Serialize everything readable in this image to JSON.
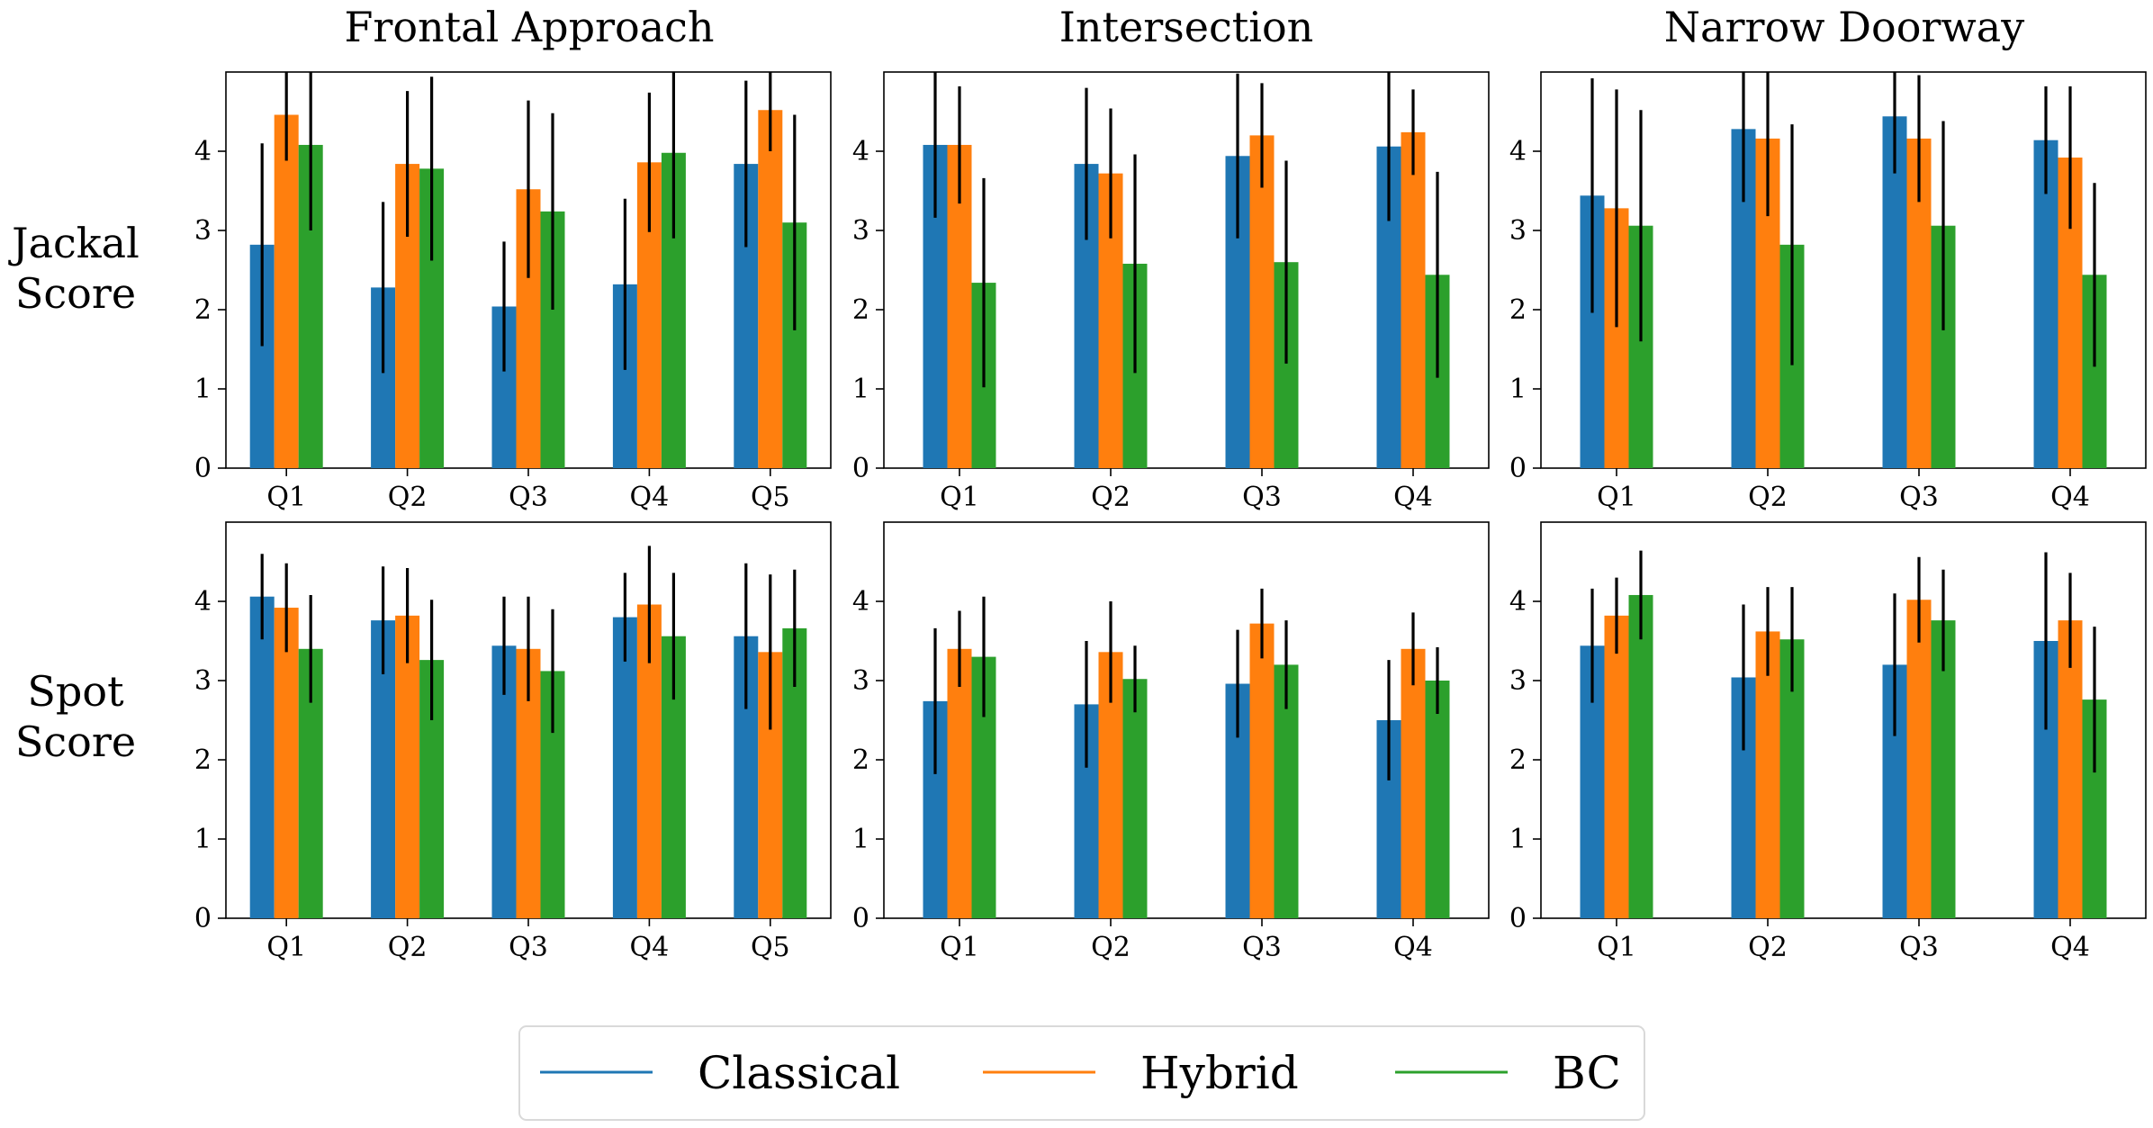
{
  "chart_data": {
    "type": "bar",
    "column_titles": [
      "Frontal Approach",
      "Intersection",
      "Narrow Doorway"
    ],
    "row_labels": [
      {
        "line1": "Jackal",
        "line2": "Score"
      },
      {
        "line1": "Spot",
        "line2": "Score"
      }
    ],
    "ylim": [
      0,
      5
    ],
    "yticks": [
      "0",
      "1",
      "2",
      "3",
      "4"
    ],
    "legend": {
      "placement": "bottom-center",
      "entries": [
        {
          "name": "Classical",
          "color": "#1f77b4"
        },
        {
          "name": "Hybrid",
          "color": "#ff7f0e"
        },
        {
          "name": "BC",
          "color": "#2ca02c"
        }
      ]
    },
    "panels": [
      {
        "row": "Jackal Score",
        "column": "Frontal Approach",
        "categories": [
          "Q1",
          "Q2",
          "Q3",
          "Q4",
          "Q5"
        ],
        "series": [
          {
            "name": "Classical",
            "values": [
              2.82,
              2.28,
              2.04,
              2.32,
              3.84
            ],
            "errors": [
              1.28,
              1.08,
              0.82,
              1.08,
              1.05
            ]
          },
          {
            "name": "Hybrid",
            "values": [
              4.46,
              3.84,
              3.52,
              3.86,
              4.52
            ],
            "errors": [
              0.58,
              0.92,
              1.12,
              0.88,
              0.52
            ]
          },
          {
            "name": "BC",
            "values": [
              4.08,
              3.78,
              3.24,
              3.98,
              3.1
            ],
            "errors": [
              1.08,
              1.16,
              1.24,
              1.08,
              1.36
            ]
          }
        ]
      },
      {
        "row": "Jackal Score",
        "column": "Intersection",
        "categories": [
          "Q1",
          "Q2",
          "Q3",
          "Q4"
        ],
        "series": [
          {
            "name": "Classical",
            "values": [
              4.08,
              3.84,
              3.94,
              4.06
            ],
            "errors": [
              0.92,
              0.96,
              1.04,
              0.94
            ]
          },
          {
            "name": "Hybrid",
            "values": [
              4.08,
              3.72,
              4.2,
              4.24
            ],
            "errors": [
              0.74,
              0.82,
              0.66,
              0.54
            ]
          },
          {
            "name": "BC",
            "values": [
              2.34,
              2.58,
              2.6,
              2.44
            ],
            "errors": [
              1.32,
              1.38,
              1.28,
              1.3
            ]
          }
        ]
      },
      {
        "row": "Jackal Score",
        "column": "Narrow Doorway",
        "categories": [
          "Q1",
          "Q2",
          "Q3",
          "Q4"
        ],
        "series": [
          {
            "name": "Classical",
            "values": [
              3.44,
              4.28,
              4.44,
              4.14
            ],
            "errors": [
              1.48,
              0.92,
              0.72,
              0.68
            ]
          },
          {
            "name": "Hybrid",
            "values": [
              3.28,
              4.16,
              4.16,
              3.92
            ],
            "errors": [
              1.5,
              0.98,
              0.8,
              0.9
            ]
          },
          {
            "name": "BC",
            "values": [
              3.06,
              2.82,
              3.06,
              2.44
            ],
            "errors": [
              1.46,
              1.52,
              1.32,
              1.16
            ]
          }
        ]
      },
      {
        "row": "Spot Score",
        "column": "Frontal Approach",
        "categories": [
          "Q1",
          "Q2",
          "Q3",
          "Q4",
          "Q5"
        ],
        "series": [
          {
            "name": "Classical",
            "values": [
              4.06,
              3.76,
              3.44,
              3.8,
              3.56
            ],
            "errors": [
              0.54,
              0.68,
              0.62,
              0.56,
              0.92
            ]
          },
          {
            "name": "Hybrid",
            "values": [
              3.92,
              3.82,
              3.4,
              3.96,
              3.36
            ],
            "errors": [
              0.56,
              0.6,
              0.66,
              0.74,
              0.98
            ]
          },
          {
            "name": "BC",
            "values": [
              3.4,
              3.26,
              3.12,
              3.56,
              3.66
            ],
            "errors": [
              0.68,
              0.76,
              0.78,
              0.8,
              0.74
            ]
          }
        ]
      },
      {
        "row": "Spot Score",
        "column": "Intersection",
        "categories": [
          "Q1",
          "Q2",
          "Q3",
          "Q4"
        ],
        "series": [
          {
            "name": "Classical",
            "values": [
              2.74,
              2.7,
              2.96,
              2.5
            ],
            "errors": [
              0.92,
              0.8,
              0.68,
              0.76
            ]
          },
          {
            "name": "Hybrid",
            "values": [
              3.4,
              3.36,
              3.72,
              3.4
            ],
            "errors": [
              0.48,
              0.64,
              0.44,
              0.46
            ]
          },
          {
            "name": "BC",
            "values": [
              3.3,
              3.02,
              3.2,
              3.0
            ],
            "errors": [
              0.76,
              0.42,
              0.56,
              0.42
            ]
          }
        ]
      },
      {
        "row": "Spot Score",
        "column": "Narrow Doorway",
        "categories": [
          "Q1",
          "Q2",
          "Q3",
          "Q4"
        ],
        "series": [
          {
            "name": "Classical",
            "values": [
              3.44,
              3.04,
              3.2,
              3.5
            ],
            "errors": [
              0.72,
              0.92,
              0.9,
              1.12
            ]
          },
          {
            "name": "Hybrid",
            "values": [
              3.82,
              3.62,
              4.02,
              3.76
            ],
            "errors": [
              0.48,
              0.56,
              0.54,
              0.6
            ]
          },
          {
            "name": "BC",
            "values": [
              4.08,
              3.52,
              3.76,
              2.76
            ],
            "errors": [
              0.56,
              0.66,
              0.64,
              0.92
            ]
          }
        ]
      }
    ]
  }
}
